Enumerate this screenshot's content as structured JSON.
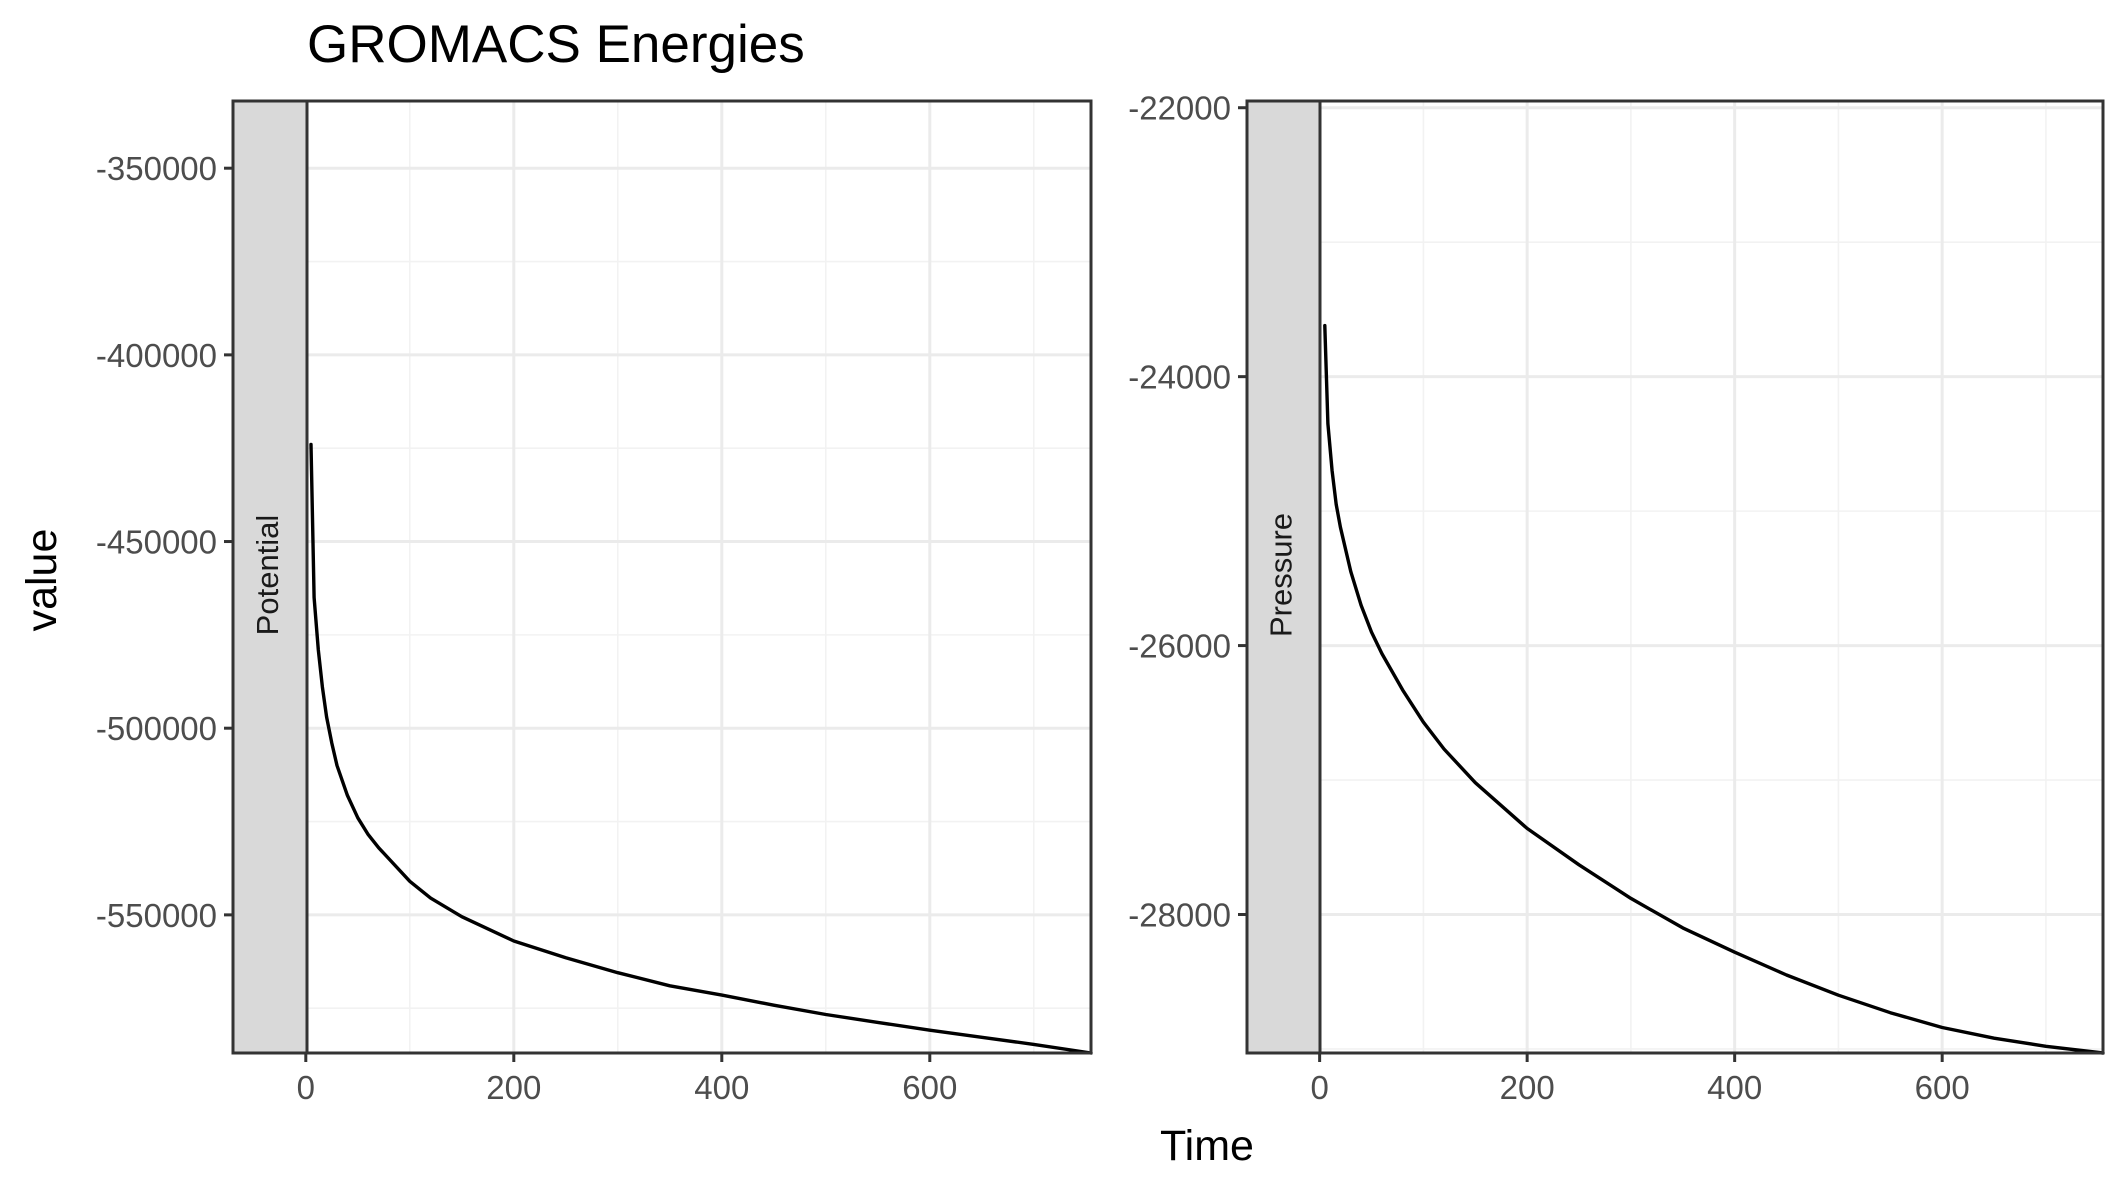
{
  "chart_data": {
    "type": "line",
    "title": "GROMACS Energies",
    "xlabel": "Time",
    "ylabel": "value",
    "grid": true,
    "facets": [
      {
        "strip_label": "Potential",
        "xlim": [
          -70,
          755
        ],
        "ylim": [
          -587000,
          -332000
        ],
        "x_ticks": [
          0,
          200,
          400,
          600
        ],
        "y_ticks": [
          -350000,
          -400000,
          -450000,
          -500000,
          -550000
        ],
        "x": [
          5,
          8,
          12,
          16,
          20,
          25,
          30,
          40,
          50,
          60,
          70,
          80,
          100,
          120,
          150,
          200,
          250,
          300,
          350,
          400,
          450,
          500,
          550,
          600,
          650,
          700,
          755
        ],
        "y": [
          -424000,
          -465000,
          -479000,
          -489000,
          -497000,
          -504000,
          -510000,
          -518000,
          -524000,
          -528500,
          -532000,
          -535000,
          -541000,
          -545500,
          -550500,
          -557000,
          -561500,
          -565500,
          -569000,
          -571500,
          -574200,
          -576700,
          -578800,
          -580900,
          -582800,
          -584700,
          -587000
        ]
      },
      {
        "strip_label": "Pressure",
        "xlim": [
          -70,
          755
        ],
        "ylim": [
          -29030,
          -21950
        ],
        "x_ticks": [
          0,
          200,
          400,
          600
        ],
        "y_ticks": [
          -22000,
          -24000,
          -26000,
          -28000
        ],
        "x": [
          5,
          8,
          12,
          16,
          20,
          30,
          40,
          50,
          60,
          80,
          100,
          120,
          150,
          200,
          250,
          300,
          350,
          400,
          450,
          500,
          550,
          600,
          650,
          700,
          755
        ],
        "y": [
          -23620,
          -24350,
          -24700,
          -24950,
          -25120,
          -25450,
          -25700,
          -25900,
          -26060,
          -26330,
          -26570,
          -26770,
          -27020,
          -27360,
          -27630,
          -27880,
          -28100,
          -28280,
          -28450,
          -28600,
          -28730,
          -28840,
          -28920,
          -28980,
          -29030
        ]
      }
    ]
  }
}
